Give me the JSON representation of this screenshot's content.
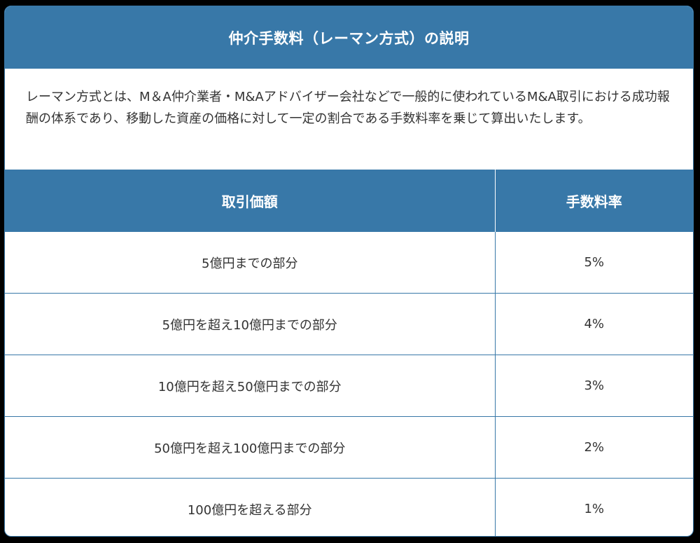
{
  "card": {
    "title": "仲介手数料（レーマン方式）の説明",
    "description": "レーマン方式とは、M＆A仲介業者・M&Aアドバイザー会社などで一般的に使われているM&A取引における成功報酬の体系であり、移動した資産の価格に対して一定の割合である手数料率を乗じて算出いたします。",
    "accent_color": "#3878a8"
  },
  "table": {
    "headers": [
      "取引価額",
      "手数料率"
    ],
    "rows": [
      {
        "range": "5億円までの部分",
        "rate": "5%"
      },
      {
        "range": "5億円を超え10億円までの部分",
        "rate": "4%"
      },
      {
        "range": "10億円を超え50億円までの部分",
        "rate": "3%"
      },
      {
        "range": "50億円を超え100億円までの部分",
        "rate": "2%"
      },
      {
        "range": "100億円を超える部分",
        "rate": "1%"
      }
    ]
  }
}
